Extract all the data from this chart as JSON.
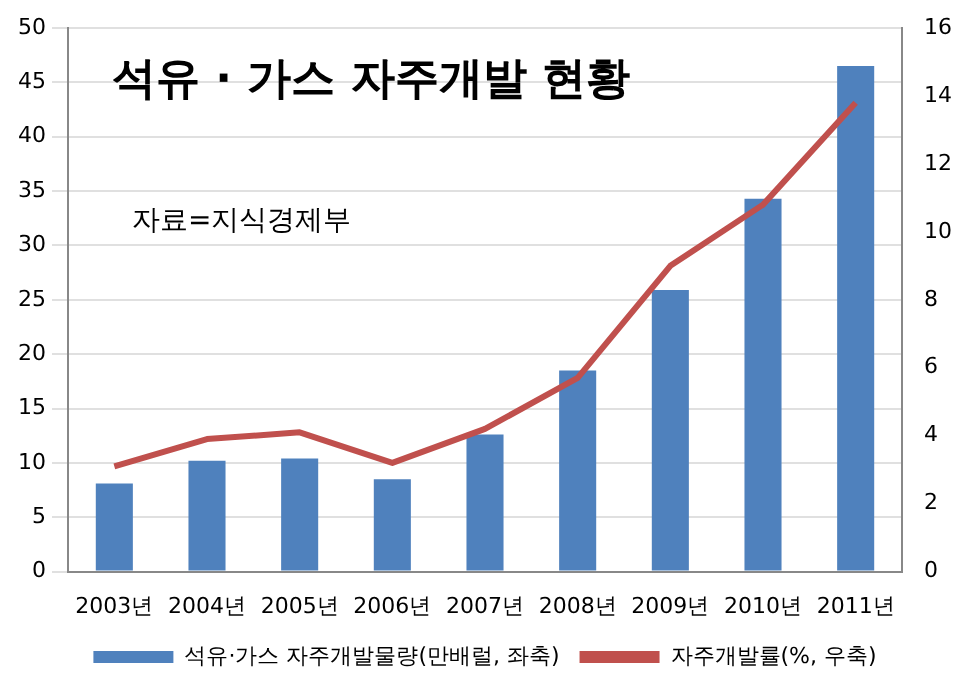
{
  "chart_data": {
    "type": "bar",
    "title": "석유 · 가스 자주개발 현황",
    "annotations": [
      "자료=지식경제부"
    ],
    "categories": [
      "2003년",
      "2004년",
      "2005년",
      "2006년",
      "2007년",
      "2008년",
      "2009년",
      "2010년",
      "2011년"
    ],
    "series": [
      {
        "name": "석유·가스 자주개발물량(만배럴, 좌축)",
        "color": "#4f81bd",
        "values": [
          8.1,
          10.2,
          10.4,
          8.5,
          12.6,
          18.5,
          25.9,
          34.3,
          46.5
        ]
      },
      {
        "name": "자주개발률(%, 우축)",
        "type": "line",
        "axis": "y2",
        "color": "#c0504d",
        "values": [
          3.1,
          3.9,
          4.1,
          3.2,
          4.2,
          5.7,
          9.0,
          10.8,
          13.8
        ]
      }
    ],
    "ylim": [
      0,
      50
    ],
    "yticks": [
      0,
      5,
      10,
      15,
      20,
      25,
      30,
      35,
      40,
      45,
      50
    ],
    "y2lim": [
      0,
      16
    ],
    "y2ticks": [
      0,
      2,
      4,
      6,
      8,
      10,
      12,
      14,
      16
    ],
    "grid": "y",
    "legend": "bottom",
    "marker": "none"
  }
}
